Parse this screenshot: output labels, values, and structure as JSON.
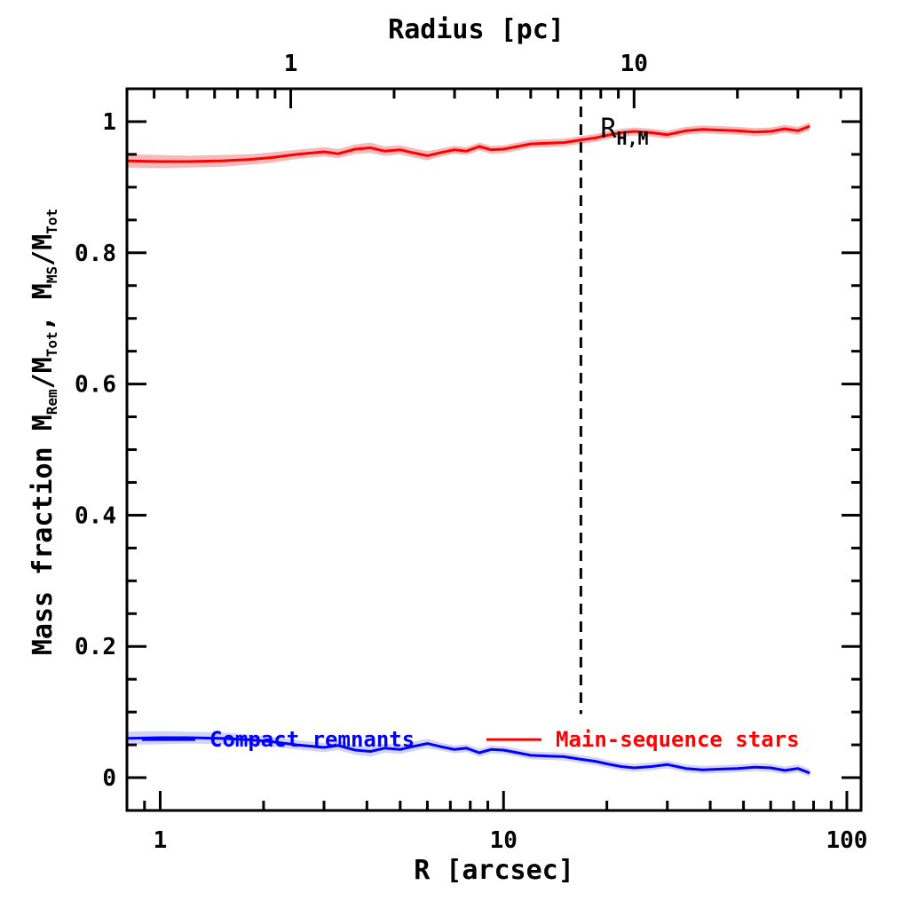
{
  "chart_data": {
    "type": "line",
    "title": "",
    "xlabel": "R [arcsec]",
    "ylabel": "Mass fraction   M_Rem/M_Tot,  M_MS/M_Tot",
    "ylabel_parts": {
      "prefix": "Mass fraction   M",
      "sub1": "Rem",
      "mid1": "/M",
      "sub2": "Tot",
      "mid2": ",  M",
      "sub3": "MS",
      "mid3": "/M",
      "sub4": "Tot"
    },
    "top_xlabel": "Radius [pc]",
    "x_scale": "log",
    "xlim": [
      0.8,
      110
    ],
    "ylim": [
      -0.05,
      1.05
    ],
    "x_ticks": [
      1,
      10,
      100
    ],
    "x_tick_labels": [
      "1",
      "10",
      "100"
    ],
    "y_ticks": [
      0,
      0.2,
      0.4,
      0.6,
      0.8,
      1
    ],
    "y_tick_labels": [
      "0",
      "0.2",
      "0.4",
      "0.6",
      "0.8",
      "1"
    ],
    "top_ticks_arcsec": [
      2.4,
      24
    ],
    "top_tick_labels": [
      "1",
      "10"
    ],
    "vline": {
      "x": 16.8,
      "style": "dashed"
    },
    "annotation": {
      "text": "R",
      "sub": "H,M"
    },
    "legend_placement": "bottom",
    "colors": {
      "main_sequence": "#ff0000",
      "remnants": "#0000ff",
      "ms_band": "#f4a6a6",
      "rem_band": "#c8c8f0"
    },
    "series": [
      {
        "name": "Main-sequence stars",
        "color": "#ff0000",
        "x": [
          0.8,
          1.0,
          1.2,
          1.5,
          1.8,
          2.1,
          2.5,
          3.0,
          3.3,
          3.7,
          4.1,
          4.5,
          5.0,
          5.5,
          6.0,
          6.6,
          7.2,
          7.8,
          8.5,
          9.2,
          10,
          11,
          12,
          13.5,
          15,
          16.8,
          18.5,
          20,
          22,
          24,
          27,
          30,
          34,
          38,
          43,
          48,
          54,
          60,
          66,
          72,
          78
        ],
        "y": [
          0.94,
          0.939,
          0.939,
          0.94,
          0.942,
          0.945,
          0.95,
          0.954,
          0.951,
          0.958,
          0.96,
          0.955,
          0.957,
          0.952,
          0.948,
          0.953,
          0.957,
          0.955,
          0.962,
          0.957,
          0.958,
          0.962,
          0.966,
          0.967,
          0.968,
          0.972,
          0.975,
          0.979,
          0.983,
          0.985,
          0.983,
          0.98,
          0.986,
          0.988,
          0.987,
          0.986,
          0.984,
          0.985,
          0.989,
          0.986,
          0.993
        ],
        "err": [
          0.01,
          0.01,
          0.009,
          0.009,
          0.008,
          0.008,
          0.007,
          0.007,
          0.007,
          0.007,
          0.008,
          0.007,
          0.007,
          0.007,
          0.007,
          0.006,
          0.006,
          0.006,
          0.006,
          0.006,
          0.006,
          0.006,
          0.006,
          0.006,
          0.006,
          0.006,
          0.006,
          0.006,
          0.006,
          0.006,
          0.006,
          0.006,
          0.006,
          0.006,
          0.006,
          0.006,
          0.006,
          0.006,
          0.006,
          0.006,
          0.006
        ]
      },
      {
        "name": "Compact remnants",
        "color": "#0000ff",
        "x": [
          0.8,
          1.0,
          1.2,
          1.5,
          1.8,
          2.1,
          2.5,
          3.0,
          3.3,
          3.7,
          4.1,
          4.5,
          5.0,
          5.5,
          6.0,
          6.6,
          7.2,
          7.8,
          8.5,
          9.2,
          10,
          11,
          12,
          13.5,
          15,
          16.8,
          18.5,
          20,
          22,
          24,
          27,
          30,
          34,
          38,
          43,
          48,
          54,
          60,
          66,
          72,
          78
        ],
        "y": [
          0.06,
          0.061,
          0.061,
          0.06,
          0.058,
          0.055,
          0.05,
          0.046,
          0.049,
          0.042,
          0.04,
          0.045,
          0.043,
          0.048,
          0.052,
          0.047,
          0.043,
          0.045,
          0.038,
          0.043,
          0.042,
          0.038,
          0.034,
          0.033,
          0.032,
          0.028,
          0.025,
          0.021,
          0.017,
          0.015,
          0.017,
          0.02,
          0.014,
          0.012,
          0.013,
          0.014,
          0.016,
          0.015,
          0.011,
          0.014,
          0.007
        ],
        "err": [
          0.01,
          0.01,
          0.009,
          0.009,
          0.008,
          0.008,
          0.007,
          0.007,
          0.007,
          0.007,
          0.008,
          0.007,
          0.007,
          0.007,
          0.007,
          0.006,
          0.006,
          0.006,
          0.006,
          0.006,
          0.006,
          0.006,
          0.006,
          0.006,
          0.006,
          0.006,
          0.006,
          0.006,
          0.006,
          0.006,
          0.006,
          0.006,
          0.006,
          0.006,
          0.006,
          0.006,
          0.006,
          0.006,
          0.006,
          0.006,
          0.006
        ]
      }
    ]
  }
}
